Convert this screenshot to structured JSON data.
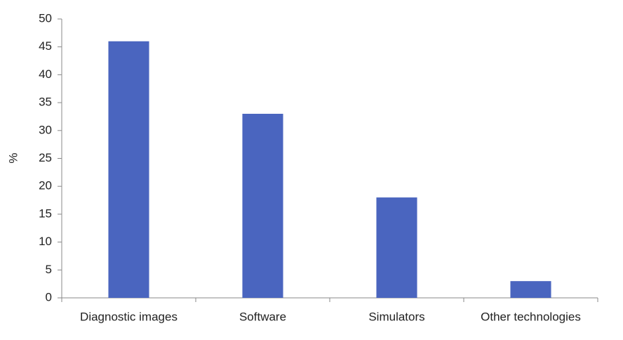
{
  "chart_data": {
    "type": "bar",
    "y_label": "%",
    "categories": [
      "Diagnostic images",
      "Software",
      "Simulators",
      "Other technologies"
    ],
    "values": [
      46,
      33,
      18,
      3
    ],
    "color": "#4a65bf",
    "ylim": [
      0,
      50
    ],
    "yticks": [
      0,
      5,
      10,
      15,
      20,
      25,
      30,
      35,
      40,
      45,
      50
    ],
    "grid": false
  }
}
